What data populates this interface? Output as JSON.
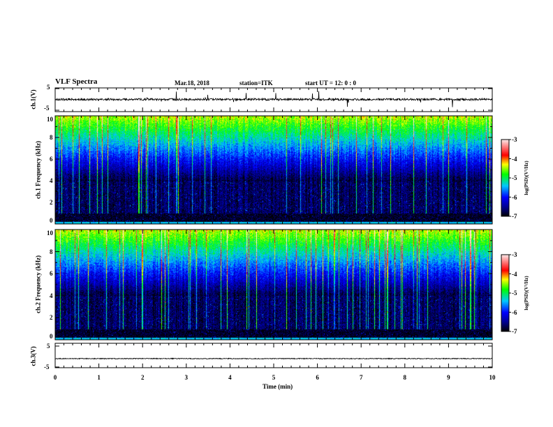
{
  "header": {
    "title": "VLF Spectra",
    "date": "Mar.18, 2018",
    "station": "station=ITK",
    "start": "start  UT =   12: 0  : 0"
  },
  "colors": {
    "trace": "#000000",
    "background": "#000000"
  },
  "chart_data": [
    {
      "type": "line",
      "name": "ch.1 waveform",
      "ylabel": "ch.1(V)",
      "ylim": [
        -5,
        5
      ],
      "yticks": [
        "5",
        "-5"
      ],
      "xlim": [
        0,
        10
      ]
    },
    {
      "type": "heatmap",
      "name": "ch.1 spectrogram",
      "ylabel": "ch.1 Frequency (kHz)",
      "ylim": [
        0,
        10
      ],
      "yticks": [
        "0",
        "2",
        "4",
        "6",
        "8",
        "10"
      ],
      "xlim": [
        0,
        10
      ],
      "colorbar": {
        "label": "log(PSD)(V²/Hz)",
        "range": [
          -7,
          -3
        ],
        "ticks": [
          "-3",
          "-4",
          "-5",
          "-6",
          "-7"
        ]
      }
    },
    {
      "type": "heatmap",
      "name": "ch.2 spectrogram",
      "ylabel": "ch.2 Frequency (kHz)",
      "ylim": [
        0,
        10
      ],
      "yticks": [
        "0",
        "2",
        "4",
        "6",
        "8",
        "10"
      ],
      "xlim": [
        0,
        10
      ],
      "colorbar": {
        "label": "log(PSD)(V²/Hz)",
        "range": [
          -7,
          -3
        ],
        "ticks": [
          "-3",
          "-4",
          "-5",
          "-6",
          "-7"
        ]
      }
    },
    {
      "type": "line",
      "name": "ch.3 waveform",
      "ylabel": "ch.3(V)",
      "ylim": [
        -5,
        5
      ],
      "yticks": [
        "5",
        "-5"
      ],
      "xlim": [
        0,
        10
      ]
    }
  ],
  "xaxis": {
    "label": "Time (min)",
    "ticks": [
      "0",
      "1",
      "2",
      "3",
      "4",
      "5",
      "6",
      "7",
      "8",
      "9",
      "10"
    ]
  }
}
